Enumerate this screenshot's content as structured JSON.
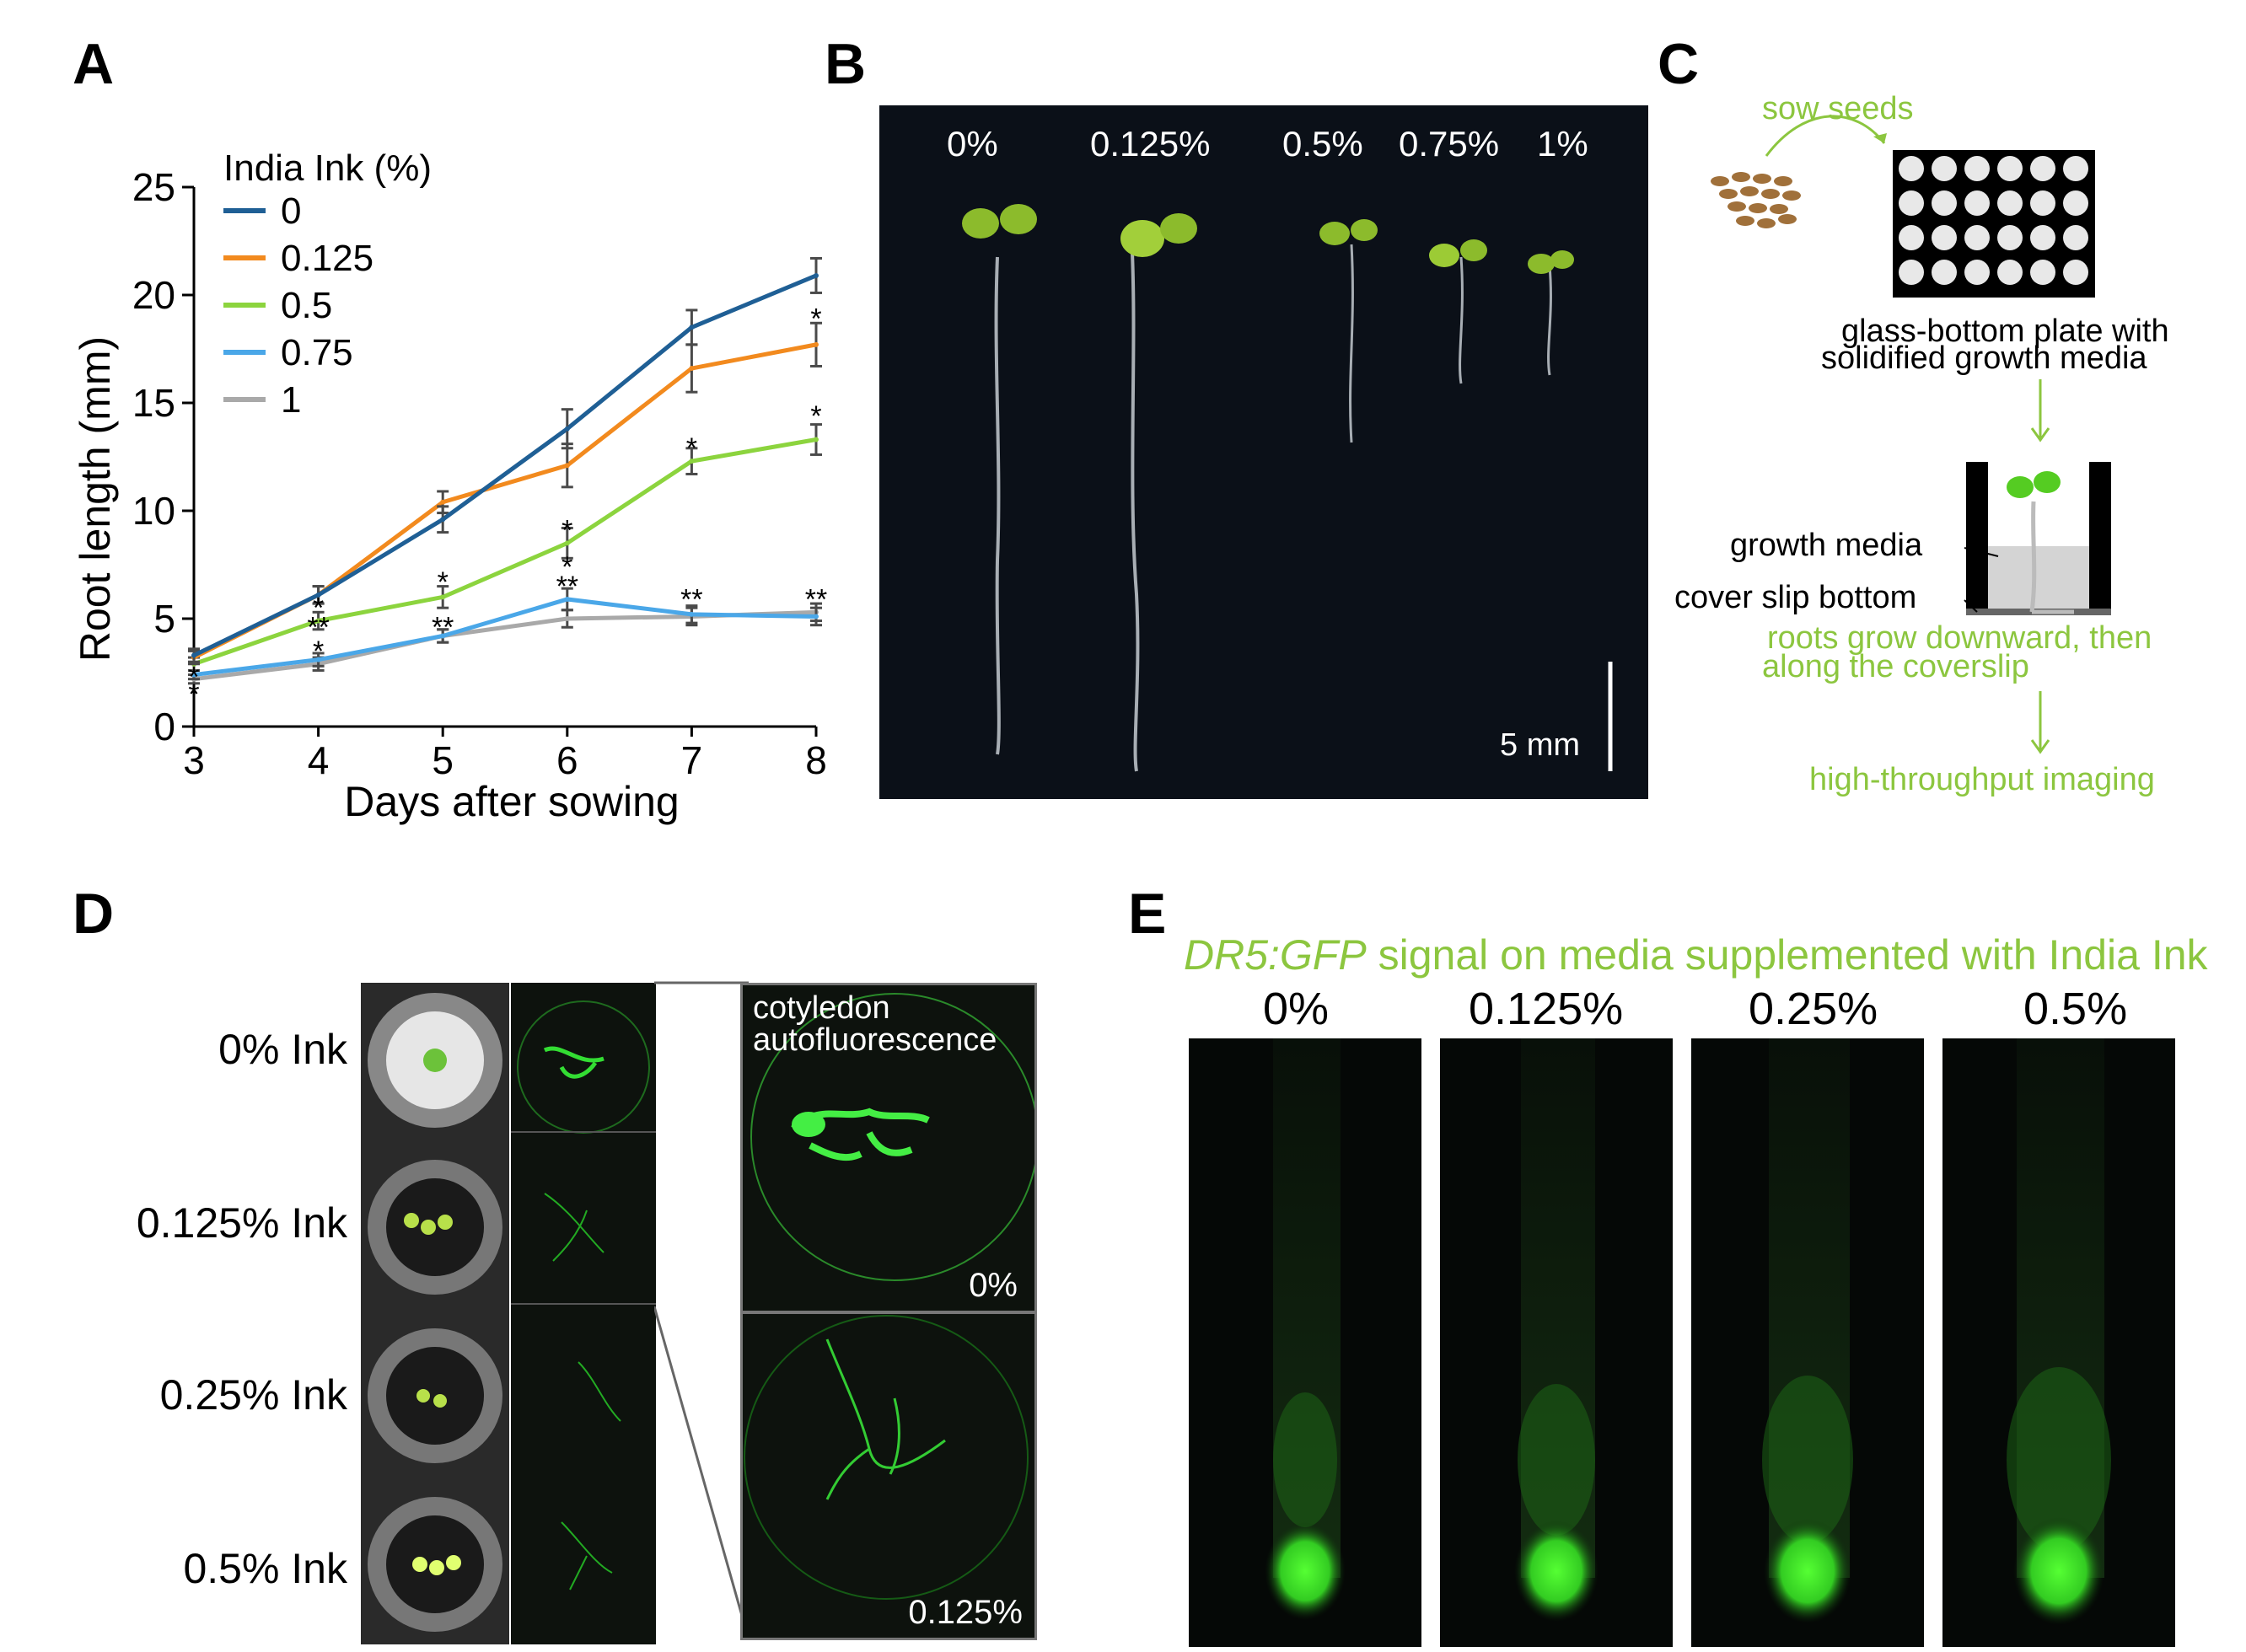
{
  "panels": {
    "a": "A",
    "b": "B",
    "c": "C",
    "d": "D",
    "e": "E"
  },
  "chart_data": {
    "type": "line",
    "ylabel": "Root length (mm)",
    "xlabel": "Days after sowing",
    "legend_title": "India Ink (%)",
    "legend_position": "top-left",
    "x": [
      3,
      4,
      5,
      6,
      7,
      8
    ],
    "xlim": [
      3,
      8
    ],
    "ylim": [
      0,
      25
    ],
    "yticks": [
      0,
      5,
      10,
      15,
      20,
      25
    ],
    "series": [
      {
        "name": "0",
        "color": "#1f5f95",
        "values": [
          3.3,
          6.1,
          9.6,
          13.8,
          18.5,
          20.9
        ],
        "err": [
          0.3,
          0.4,
          0.6,
          0.9,
          0.8,
          0.8
        ]
      },
      {
        "name": "0.125",
        "color": "#f28a1e",
        "values": [
          3.2,
          6.1,
          10.4,
          12.1,
          16.6,
          17.7
        ],
        "err": [
          0.3,
          0.4,
          0.5,
          1.0,
          1.1,
          1.0
        ]
      },
      {
        "name": "0.5",
        "color": "#8cd43e",
        "values": [
          2.9,
          4.9,
          6.0,
          8.5,
          12.3,
          13.3
        ],
        "err": [
          0.3,
          0.4,
          0.5,
          0.7,
          0.6,
          0.7
        ]
      },
      {
        "name": "0.75",
        "color": "#4aa7e8",
        "values": [
          2.4,
          3.1,
          4.2,
          5.9,
          5.2,
          5.1
        ],
        "err": [
          0.2,
          0.3,
          0.3,
          0.5,
          0.4,
          0.4
        ]
      },
      {
        "name": "1",
        "color": "#a9a9a9",
        "values": [
          2.2,
          2.9,
          4.2,
          5.0,
          5.1,
          5.3
        ],
        "err": [
          0.2,
          0.3,
          0.3,
          0.4,
          0.4,
          0.4
        ]
      }
    ],
    "significance": [
      {
        "x": 3,
        "y": 1.6,
        "text": "*"
      },
      {
        "x": 3,
        "y": 2.4,
        "text": "*"
      },
      {
        "x": 4,
        "y": 3.6,
        "text": "*"
      },
      {
        "x": 4,
        "y": 4.7,
        "text": "**"
      },
      {
        "x": 4,
        "y": 5.6,
        "text": "*"
      },
      {
        "x": 5,
        "y": 4.7,
        "text": "**"
      },
      {
        "x": 5,
        "y": 6.8,
        "text": "*"
      },
      {
        "x": 6,
        "y": 6.6,
        "text": "**"
      },
      {
        "x": 6,
        "y": 7.5,
        "text": "*"
      },
      {
        "x": 6,
        "y": 9.2,
        "text": "*"
      },
      {
        "x": 7,
        "y": 6.0,
        "text": "**"
      },
      {
        "x": 7,
        "y": 13.0,
        "text": "*"
      },
      {
        "x": 8,
        "y": 6.0,
        "text": "**"
      },
      {
        "x": 8,
        "y": 14.5,
        "text": "*"
      },
      {
        "x": 8,
        "y": 19.0,
        "text": "*"
      }
    ]
  },
  "panel_b": {
    "labels": [
      "0%",
      "0.125%",
      "0.5%",
      "0.75%",
      "1%"
    ],
    "scale_bar": "5 mm"
  },
  "panel_c": {
    "sow_seeds": "sow seeds",
    "plate_line1": "glass-bottom plate with",
    "plate_line2": "solidified growth media",
    "growth_media": "growth media",
    "cover_slip": "cover slip bottom",
    "roots_line1": "roots grow downward, then",
    "roots_line2": "along the coverslip",
    "imaging": "high-throughput imaging"
  },
  "panel_d": {
    "rows": [
      "0% Ink",
      "0.125% Ink",
      "0.25% Ink",
      "0.5% Ink"
    ],
    "autofluo_line1": "cotyledon",
    "autofluo_line2": "autofluorescence",
    "zoom_top": "0%",
    "zoom_bottom": "0.125%"
  },
  "panel_e": {
    "title_italic": "DR5:GFP",
    "title_rest": " signal on media supplemented with India Ink",
    "labels": [
      "0%",
      "0.125%",
      "0.25%",
      "0.5%"
    ]
  }
}
